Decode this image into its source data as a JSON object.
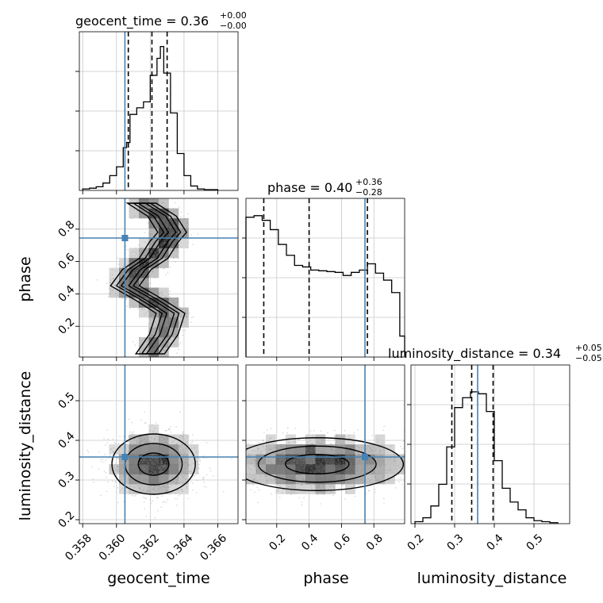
{
  "chart_data": {
    "type": "corner",
    "parameters": [
      "geocent_time",
      "phase",
      "luminosity_distance"
    ],
    "injection": {
      "geocent_time": 0.3605,
      "phase": 0.745,
      "luminosity_distance": 0.358
    },
    "colors": {
      "truth": "#4682b4",
      "hist": "#000000",
      "grid": "#c8c8c8"
    },
    "grid": true,
    "titles": [
      {
        "param": "geocent_time",
        "prefix": "geocent_time = ",
        "median": "0.36",
        "plus": "+0.00",
        "minus": "−0.00"
      },
      {
        "param": "phase",
        "prefix": "phase = ",
        "median": "0.40",
        "plus": "+0.36",
        "minus": "−0.28"
      },
      {
        "param": "luminosity_distance",
        "prefix": "luminosity_distance = ",
        "median": "0.34",
        "plus": "+0.05",
        "minus": "−0.05"
      }
    ],
    "axes": {
      "geocent_time": {
        "label": "geocent_time",
        "range": [
          0.3578,
          0.3672
        ],
        "ticks": [
          0.358,
          0.36,
          0.362,
          0.364,
          0.366
        ],
        "tick_labels": [
          "0.358",
          "0.360",
          "0.362",
          "0.364",
          "0.366"
        ]
      },
      "phase": {
        "label": "phase",
        "range": [
          0.01,
          0.99
        ],
        "ticks": [
          0.2,
          0.4,
          0.6,
          0.8
        ],
        "tick_labels": [
          "0.2",
          "0.4",
          "0.6",
          "0.8"
        ]
      },
      "luminosity_distance": {
        "label": "luminosity_distance",
        "range": [
          0.19,
          0.59
        ],
        "ticks": [
          0.2,
          0.3,
          0.4,
          0.5
        ],
        "tick_labels": [
          "0.2",
          "0.3",
          "0.4",
          "0.5"
        ]
      }
    },
    "histograms": [
      {
        "param": "geocent_time",
        "bin_edges": [
          0.358,
          0.3584,
          0.3588,
          0.3592,
          0.3596,
          0.36,
          0.3604,
          0.3606,
          0.3608,
          0.3612,
          0.3616,
          0.362,
          0.3624,
          0.3626,
          0.3628,
          0.3632,
          0.3636,
          0.364,
          0.3644,
          0.3648,
          0.3652,
          0.366
        ],
        "counts": [
          2,
          3,
          5,
          10,
          20,
          32,
          58,
          65,
          103,
          112,
          120,
          156,
          179,
          195,
          159,
          105,
          50,
          20,
          6,
          2,
          1
        ],
        "ymax": 200,
        "quantiles": [
          0.3607,
          0.3621,
          0.363
        ]
      },
      {
        "param": "phase",
        "bin_edges": [
          0.01,
          0.06,
          0.11,
          0.16,
          0.21,
          0.26,
          0.31,
          0.36,
          0.41,
          0.46,
          0.51,
          0.56,
          0.61,
          0.66,
          0.71,
          0.76,
          0.81,
          0.86,
          0.91,
          0.96,
          0.99
        ],
        "counts": [
          180,
          182,
          176,
          164,
          145,
          131,
          118,
          116,
          112,
          111,
          110,
          109,
          105,
          109,
          112,
          120,
          108,
          99,
          83,
          27
        ],
        "ymax": 190,
        "quantiles": [
          0.12,
          0.4,
          0.76
        ]
      },
      {
        "param": "luminosity_distance",
        "bin_edges": [
          0.2,
          0.22,
          0.24,
          0.26,
          0.28,
          0.3,
          0.32,
          0.34,
          0.36,
          0.38,
          0.4,
          0.42,
          0.44,
          0.46,
          0.48,
          0.5,
          0.52,
          0.54,
          0.56
        ],
        "counts": [
          2,
          6,
          18,
          40,
          78,
          118,
          128,
          134,
          132,
          114,
          64,
          36,
          22,
          14,
          6,
          3,
          2,
          1
        ],
        "ymax": 150,
        "quantiles": [
          0.293,
          0.343,
          0.397
        ]
      }
    ],
    "panels_2d": [
      {
        "x": "geocent_time",
        "y": "phase",
        "ridge": [
          [
            0.362,
            0.03
          ],
          [
            0.3628,
            0.15
          ],
          [
            0.3632,
            0.28
          ],
          [
            0.362,
            0.36
          ],
          [
            0.3605,
            0.45
          ],
          [
            0.3612,
            0.55
          ],
          [
            0.3622,
            0.62
          ],
          [
            0.3628,
            0.72
          ],
          [
            0.3633,
            0.78
          ],
          [
            0.3627,
            0.88
          ],
          [
            0.3615,
            0.96
          ]
        ]
      },
      {
        "x": "geocent_time",
        "y": "luminosity_distance",
        "center": [
          0.3622,
          0.34
        ],
        "spread": [
          0.0013,
          0.04
        ]
      },
      {
        "x": "phase",
        "y": "luminosity_distance",
        "center": [
          0.45,
          0.34
        ],
        "spread": [
          0.28,
          0.035
        ]
      }
    ]
  }
}
